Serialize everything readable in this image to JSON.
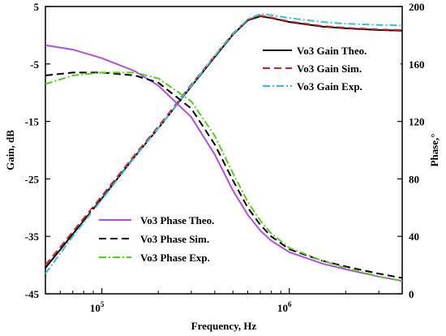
{
  "chart_data": {
    "type": "line",
    "xlabel": "Frequency, Hz",
    "ylabel_left": "Gain, dB",
    "ylabel_right": "Phase,°",
    "x_scale": "log",
    "xlim": [
      50000,
      4000000
    ],
    "ylim_left": [
      -45,
      5
    ],
    "ylim_right": [
      0,
      200
    ],
    "x_ticks": [
      {
        "value": 100000,
        "base": "10",
        "exp": "5"
      },
      {
        "value": 1000000,
        "base": "10",
        "exp": "6"
      }
    ],
    "y_ticks_left": [
      5,
      -5,
      -15,
      -25,
      -35,
      -45
    ],
    "y_ticks_right": [
      200,
      160,
      120,
      80,
      40,
      0
    ],
    "grid": false,
    "legend_gain_position": "top-right",
    "legend_phase_position": "bottom-left",
    "series": [
      {
        "name": "Vo3 Gain Theo.",
        "axis": "left",
        "color": "#000000",
        "dash": "solid",
        "x": [
          50000,
          70000,
          100000,
          150000,
          200000,
          300000,
          400000,
          500000,
          600000,
          700000,
          800000,
          1000000,
          1500000,
          2000000,
          3000000,
          4000000
        ],
        "y": [
          -40.5,
          -34.6,
          -28.4,
          -21.1,
          -16.2,
          -8.9,
          -3.8,
          0.1,
          2.6,
          3.3,
          3.0,
          2.3,
          1.5,
          1.2,
          0.9,
          0.8
        ]
      },
      {
        "name": "Vo3 Gain Sim.",
        "axis": "left",
        "color": "#d62020",
        "dash": "long",
        "x": [
          50000,
          70000,
          100000,
          150000,
          200000,
          300000,
          400000,
          500000,
          600000,
          700000,
          800000,
          1000000,
          1500000,
          2000000,
          3000000,
          4000000
        ],
        "y": [
          -40.0,
          -34.2,
          -28.0,
          -20.8,
          -15.9,
          -8.6,
          -3.6,
          0.3,
          2.7,
          3.4,
          3.1,
          2.4,
          1.6,
          1.3,
          1.0,
          0.9
        ]
      },
      {
        "name": "Vo3 Gain Exp.",
        "axis": "left",
        "color": "#33c0dd",
        "dash": "dashdot",
        "x": [
          50000,
          70000,
          100000,
          150000,
          200000,
          300000,
          400000,
          500000,
          600000,
          700000,
          800000,
          1000000,
          1500000,
          2000000,
          3000000,
          4000000
        ],
        "y": [
          -41.5,
          -35.0,
          -28.6,
          -21.2,
          -16.2,
          -8.8,
          -3.6,
          0.2,
          2.8,
          3.7,
          3.5,
          3.0,
          2.3,
          2.0,
          1.8,
          1.7
        ]
      },
      {
        "name": "Vo3 Phase Theo.",
        "axis": "right",
        "color": "#b24ee0",
        "dash": "solid",
        "x": [
          50000,
          70000,
          100000,
          150000,
          200000,
          300000,
          400000,
          500000,
          600000,
          700000,
          800000,
          1000000,
          1500000,
          2000000,
          3000000,
          4000000
        ],
        "y": [
          173,
          170,
          164,
          155,
          145,
          123,
          97,
          72,
          55,
          44,
          37,
          29,
          21,
          17,
          12,
          9
        ]
      },
      {
        "name": "Vo3 Phase Sim.",
        "axis": "right",
        "color": "#000000",
        "dash": "long",
        "x": [
          50000,
          70000,
          100000,
          150000,
          200000,
          300000,
          400000,
          500000,
          600000,
          700000,
          800000,
          1000000,
          1500000,
          2000000,
          3000000,
          4000000
        ],
        "y": [
          152,
          154,
          154,
          152,
          147,
          129,
          104,
          79,
          60,
          48,
          40,
          31,
          23,
          19,
          14,
          11
        ]
      },
      {
        "name": "Vo3 Phase Exp.",
        "axis": "right",
        "color": "#55cc22",
        "dash": "dashdot",
        "x": [
          50000,
          70000,
          100000,
          150000,
          200000,
          300000,
          400000,
          500000,
          600000,
          700000,
          800000,
          1000000,
          1500000,
          2000000,
          3000000,
          4000000
        ],
        "y": [
          146,
          152,
          154,
          154,
          150,
          134,
          110,
          84,
          64,
          51,
          42,
          32,
          23,
          18,
          12,
          9
        ]
      }
    ]
  }
}
